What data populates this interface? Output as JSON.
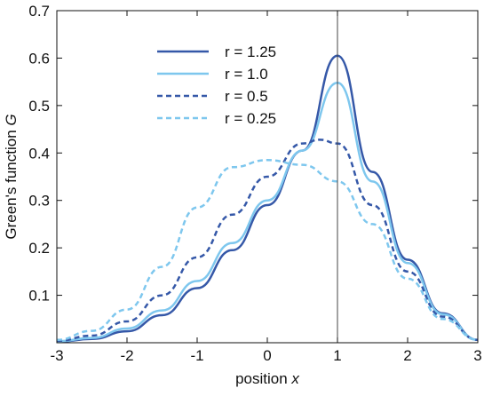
{
  "chart_data": {
    "type": "line",
    "xlabel": "position",
    "xlabel_var": "x",
    "ylabel": "Green's function",
    "ylabel_var": "G",
    "xlim": [
      -3,
      3
    ],
    "ylim": [
      0,
      0.7
    ],
    "xticks": [
      "-3",
      "-2",
      "-1",
      "0",
      "1",
      "2",
      "3"
    ],
    "xtick_values": [
      -3,
      -2,
      -1,
      0,
      1,
      2,
      3
    ],
    "yticks": [
      "0.1",
      "0.2",
      "0.3",
      "0.4",
      "0.5",
      "0.6",
      "0.7"
    ],
    "ytick_values": [
      0.1,
      0.2,
      0.3,
      0.4,
      0.5,
      0.6,
      0.7
    ],
    "vertical_line_x": 1,
    "grid": false,
    "legend_position": "top-left",
    "series": [
      {
        "name": "r = 1.25",
        "color": "#3558a8",
        "dash": "solid",
        "points": [
          [
            -3,
            0.002
          ],
          [
            -2.5,
            0.008
          ],
          [
            -2,
            0.024
          ],
          [
            -1.5,
            0.058
          ],
          [
            -1,
            0.115
          ],
          [
            -0.5,
            0.195
          ],
          [
            0,
            0.29
          ],
          [
            0.5,
            0.405
          ],
          [
            1,
            0.605
          ],
          [
            1.5,
            0.36
          ],
          [
            2,
            0.175
          ],
          [
            2.5,
            0.062
          ],
          [
            3,
            0.006
          ]
        ]
      },
      {
        "name": "r = 1.0",
        "color": "#7ec7ee",
        "dash": "solid",
        "points": [
          [
            -3,
            0.003
          ],
          [
            -2.5,
            0.01
          ],
          [
            -2,
            0.03
          ],
          [
            -1.5,
            0.068
          ],
          [
            -1,
            0.13
          ],
          [
            -0.5,
            0.21
          ],
          [
            0,
            0.3
          ],
          [
            0.5,
            0.405
          ],
          [
            1,
            0.548
          ],
          [
            1.5,
            0.34
          ],
          [
            2,
            0.168
          ],
          [
            2.5,
            0.06
          ],
          [
            3,
            0.006
          ]
        ]
      },
      {
        "name": "r = 0.5",
        "color": "#3558a8",
        "dash": "dashed",
        "points": [
          [
            -3,
            0.004
          ],
          [
            -2.5,
            0.015
          ],
          [
            -2,
            0.045
          ],
          [
            -1.5,
            0.1
          ],
          [
            -1,
            0.18
          ],
          [
            -0.5,
            0.27
          ],
          [
            0,
            0.35
          ],
          [
            0.5,
            0.42
          ],
          [
            0.75,
            0.428
          ],
          [
            1,
            0.42
          ],
          [
            1.5,
            0.29
          ],
          [
            2,
            0.15
          ],
          [
            2.5,
            0.055
          ],
          [
            3,
            0.006
          ]
        ]
      },
      {
        "name": "r = 0.25",
        "color": "#7ec7ee",
        "dash": "dashed",
        "points": [
          [
            -3,
            0.006
          ],
          [
            -2.5,
            0.025
          ],
          [
            -2,
            0.07
          ],
          [
            -1.5,
            0.16
          ],
          [
            -1,
            0.285
          ],
          [
            -0.5,
            0.37
          ],
          [
            0,
            0.385
          ],
          [
            0.5,
            0.375
          ],
          [
            1,
            0.34
          ],
          [
            1.5,
            0.25
          ],
          [
            2,
            0.135
          ],
          [
            2.5,
            0.05
          ],
          [
            3,
            0.006
          ]
        ]
      }
    ]
  }
}
